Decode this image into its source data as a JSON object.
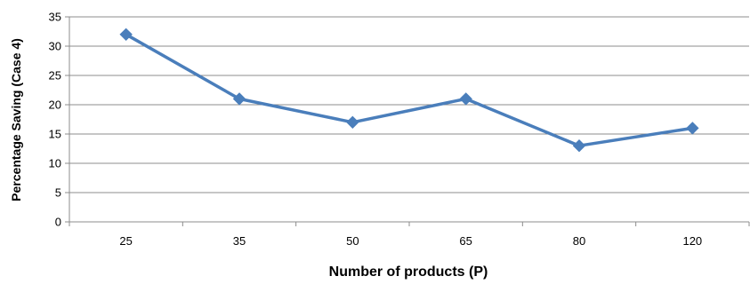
{
  "chart_data": {
    "type": "line",
    "title": "",
    "xlabel": "Number of products (P)",
    "ylabel": "Percentage Saving (Case 4)",
    "categories": [
      "25",
      "35",
      "50",
      "65",
      "80",
      "120"
    ],
    "series": [
      {
        "values": [
          32,
          21,
          17,
          21,
          13,
          16
        ],
        "color": "#4a7ebb"
      }
    ],
    "ylim": [
      0,
      35
    ],
    "yticks": [
      0,
      5,
      10,
      15,
      20,
      25,
      30,
      35
    ],
    "grid": true,
    "legend": "none",
    "marker": "diamond"
  }
}
